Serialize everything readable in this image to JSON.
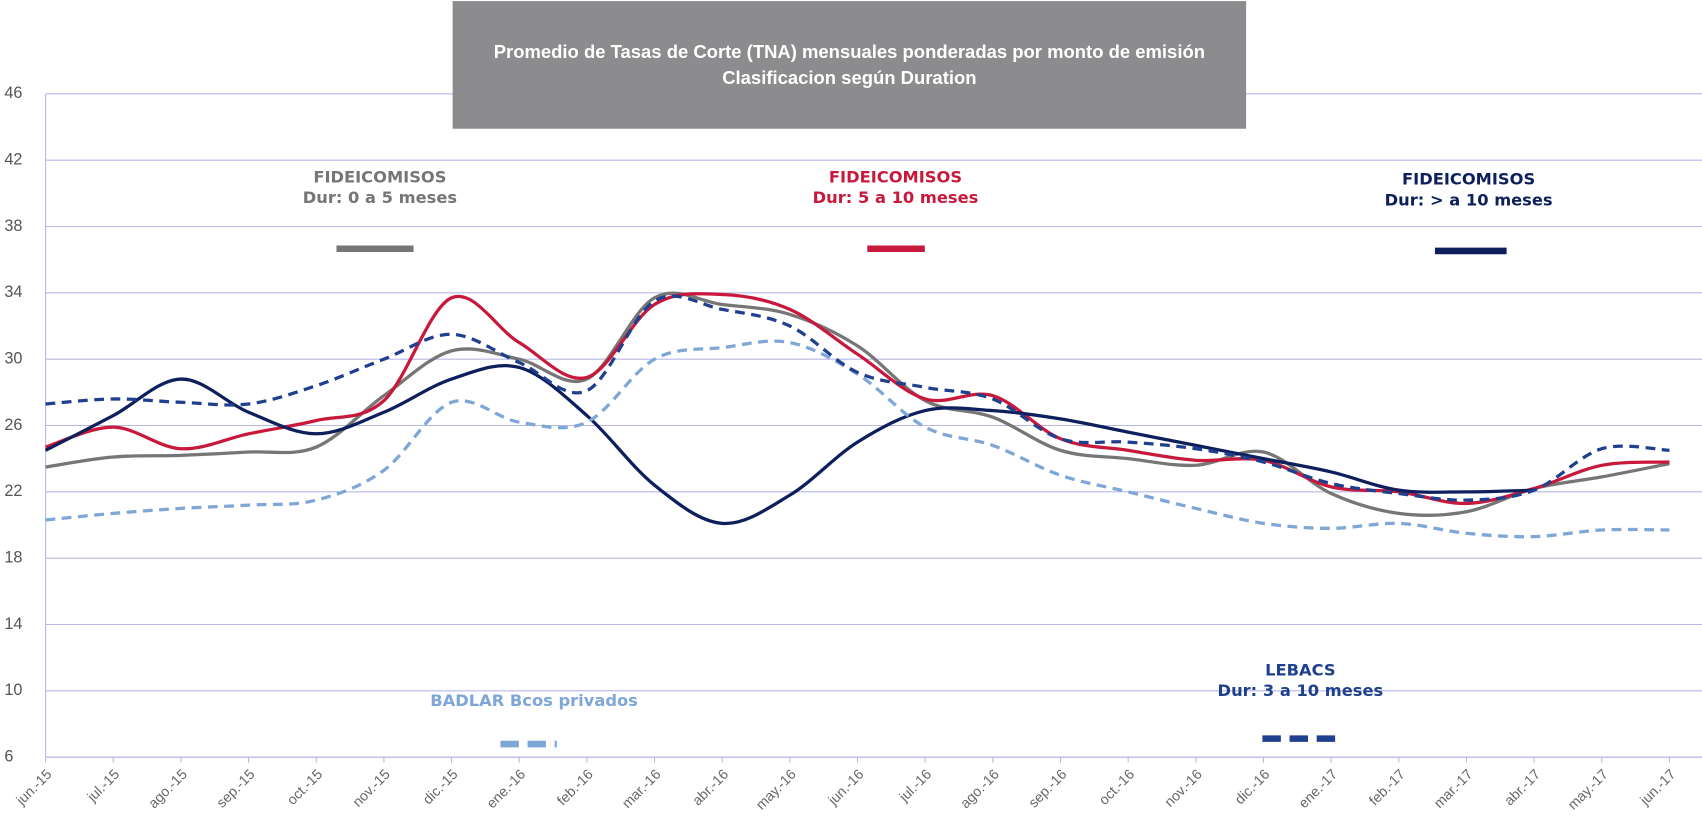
{
  "chart_data": {
    "type": "line",
    "title": "Promedio de Tasas de Corte (TNA) mensuales ponderadas por monto de emisión Clasificacion según Duration",
    "categories": [
      "jun.-15",
      "jul.-15",
      "ago.-15",
      "sep.-15",
      "oct.-15",
      "nov.-15",
      "dic.-15",
      "ene.-16",
      "feb.-16",
      "mar.-16",
      "abr.-16",
      "may.-16",
      "jun.-16",
      "jul.-16",
      "ago.-16",
      "sep.-16",
      "oct.-16",
      "nov.-16",
      "dic.-16",
      "ene.-17",
      "feb.-17",
      "mar.-17",
      "abr.-17",
      "may.-17",
      "jun.-17"
    ],
    "ylim": [
      6,
      46
    ],
    "yticks": [
      6,
      10,
      14,
      18,
      22,
      26,
      30,
      34,
      38,
      42,
      46
    ],
    "grid": true,
    "smooth": true,
    "series": [
      {
        "name": "FIDEICOMISOS",
        "duration": "Dur: 0 a 5 meses",
        "color": "#767676",
        "dashed": false,
        "values": [
          23.5,
          24.1,
          24.2,
          24.4,
          24.7,
          27.8,
          30.5,
          30.0,
          28.8,
          33.7,
          33.3,
          32.7,
          30.8,
          27.5,
          26.5,
          24.5,
          24.0,
          23.6,
          24.4,
          21.9,
          20.7,
          20.8,
          22.2,
          22.9,
          23.7
        ]
      },
      {
        "name": "FIDEICOMISOS",
        "duration": "Dur: 5 a 10 meses",
        "color": "#c8193c",
        "dashed": false,
        "values": [
          24.7,
          25.9,
          24.6,
          25.5,
          26.3,
          27.5,
          33.7,
          31.0,
          28.9,
          33.3,
          33.9,
          33.0,
          30.3,
          27.6,
          27.8,
          25.2,
          24.5,
          23.9,
          23.9,
          22.3,
          22.0,
          21.3,
          22.2,
          23.6,
          23.8
        ]
      },
      {
        "name": "FIDEICOMISOS",
        "duration": "Dur: > a 10 meses",
        "color": "#0d1f5c",
        "dashed": false,
        "values": [
          24.5,
          26.6,
          28.8,
          26.8,
          25.5,
          26.8,
          28.8,
          29.5,
          26.6,
          22.4,
          20.1,
          21.8,
          25.0,
          26.9,
          26.9,
          26.4,
          25.6,
          24.8,
          24.0,
          23.2,
          22.1,
          22.0,
          22.1,
          null,
          null
        ]
      },
      {
        "name": "BADLAR Bcos privados",
        "color": "#7ea6d6",
        "dashed": true,
        "values": [
          20.3,
          20.7,
          21.0,
          21.2,
          21.5,
          23.3,
          27.4,
          26.2,
          26.2,
          30.0,
          30.7,
          31.0,
          29.1,
          25.9,
          24.8,
          23.0,
          22.0,
          21.0,
          20.1,
          19.8,
          20.1,
          19.5,
          19.3,
          19.7,
          19.7
        ]
      },
      {
        "name": "LEBACS",
        "duration": "Dur: 3 a 10 meses",
        "color": "#1f3f8f",
        "dashed": true,
        "values": [
          27.3,
          27.6,
          27.4,
          27.3,
          28.4,
          30.0,
          31.5,
          29.8,
          28.1,
          33.5,
          33.0,
          32.0,
          29.2,
          28.3,
          27.6,
          25.2,
          25.0,
          24.6,
          23.8,
          22.5,
          21.9,
          21.5,
          22.1,
          24.6,
          24.5
        ]
      }
    ]
  }
}
